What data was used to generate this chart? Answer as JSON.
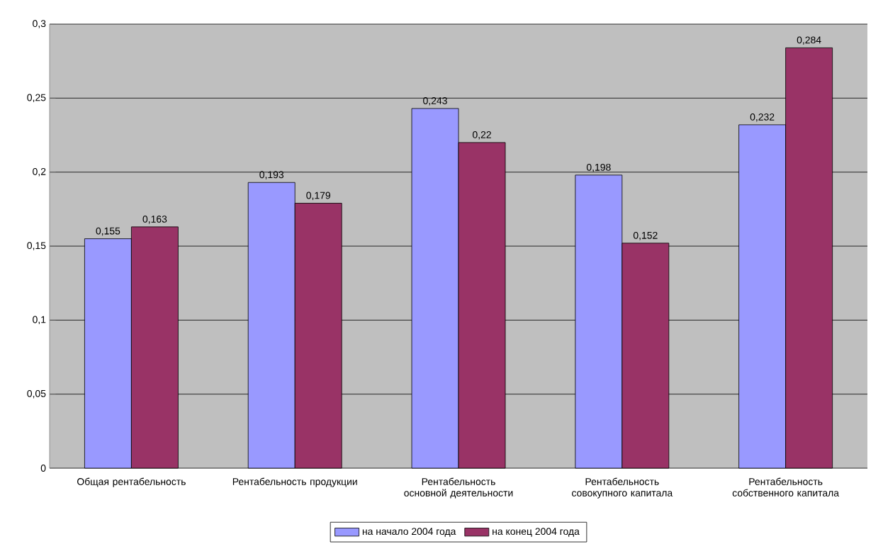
{
  "chart_data": {
    "type": "bar",
    "categories": [
      "Общая рентабельность",
      "Рентабельность продукции",
      "Рентабельность основной деятельности",
      "Рентабельность совокупного капитала",
      "Рентабельность собственного капитала"
    ],
    "series": [
      {
        "name": "на начало 2004 года",
        "color": "#9999ff",
        "values": [
          0.155,
          0.193,
          0.243,
          0.198,
          0.232
        ],
        "value_labels": [
          "0,155",
          "0,193",
          "0,243",
          "0,198",
          "0,232"
        ]
      },
      {
        "name": "на конец 2004 года",
        "color": "#993366",
        "values": [
          0.163,
          0.179,
          0.22,
          0.152,
          0.284
        ],
        "value_labels": [
          "0,163",
          "0,179",
          "0,22",
          "0,152",
          "0,284"
        ]
      }
    ],
    "ylim": [
      0,
      0.3
    ],
    "yticks": [
      0,
      {
        "value": 0.05,
        "label": "0,05"
      },
      {
        "value": 0.1,
        "label": "0,1"
      },
      {
        "value": 0.15,
        "label": "0,15"
      },
      {
        "value": 0.2,
        "label": "0,2"
      },
      {
        "value": 0.25,
        "label": "0,25"
      },
      {
        "value": 0.3,
        "label": "0,3"
      }
    ],
    "grid": "y",
    "legend": "bottom"
  }
}
